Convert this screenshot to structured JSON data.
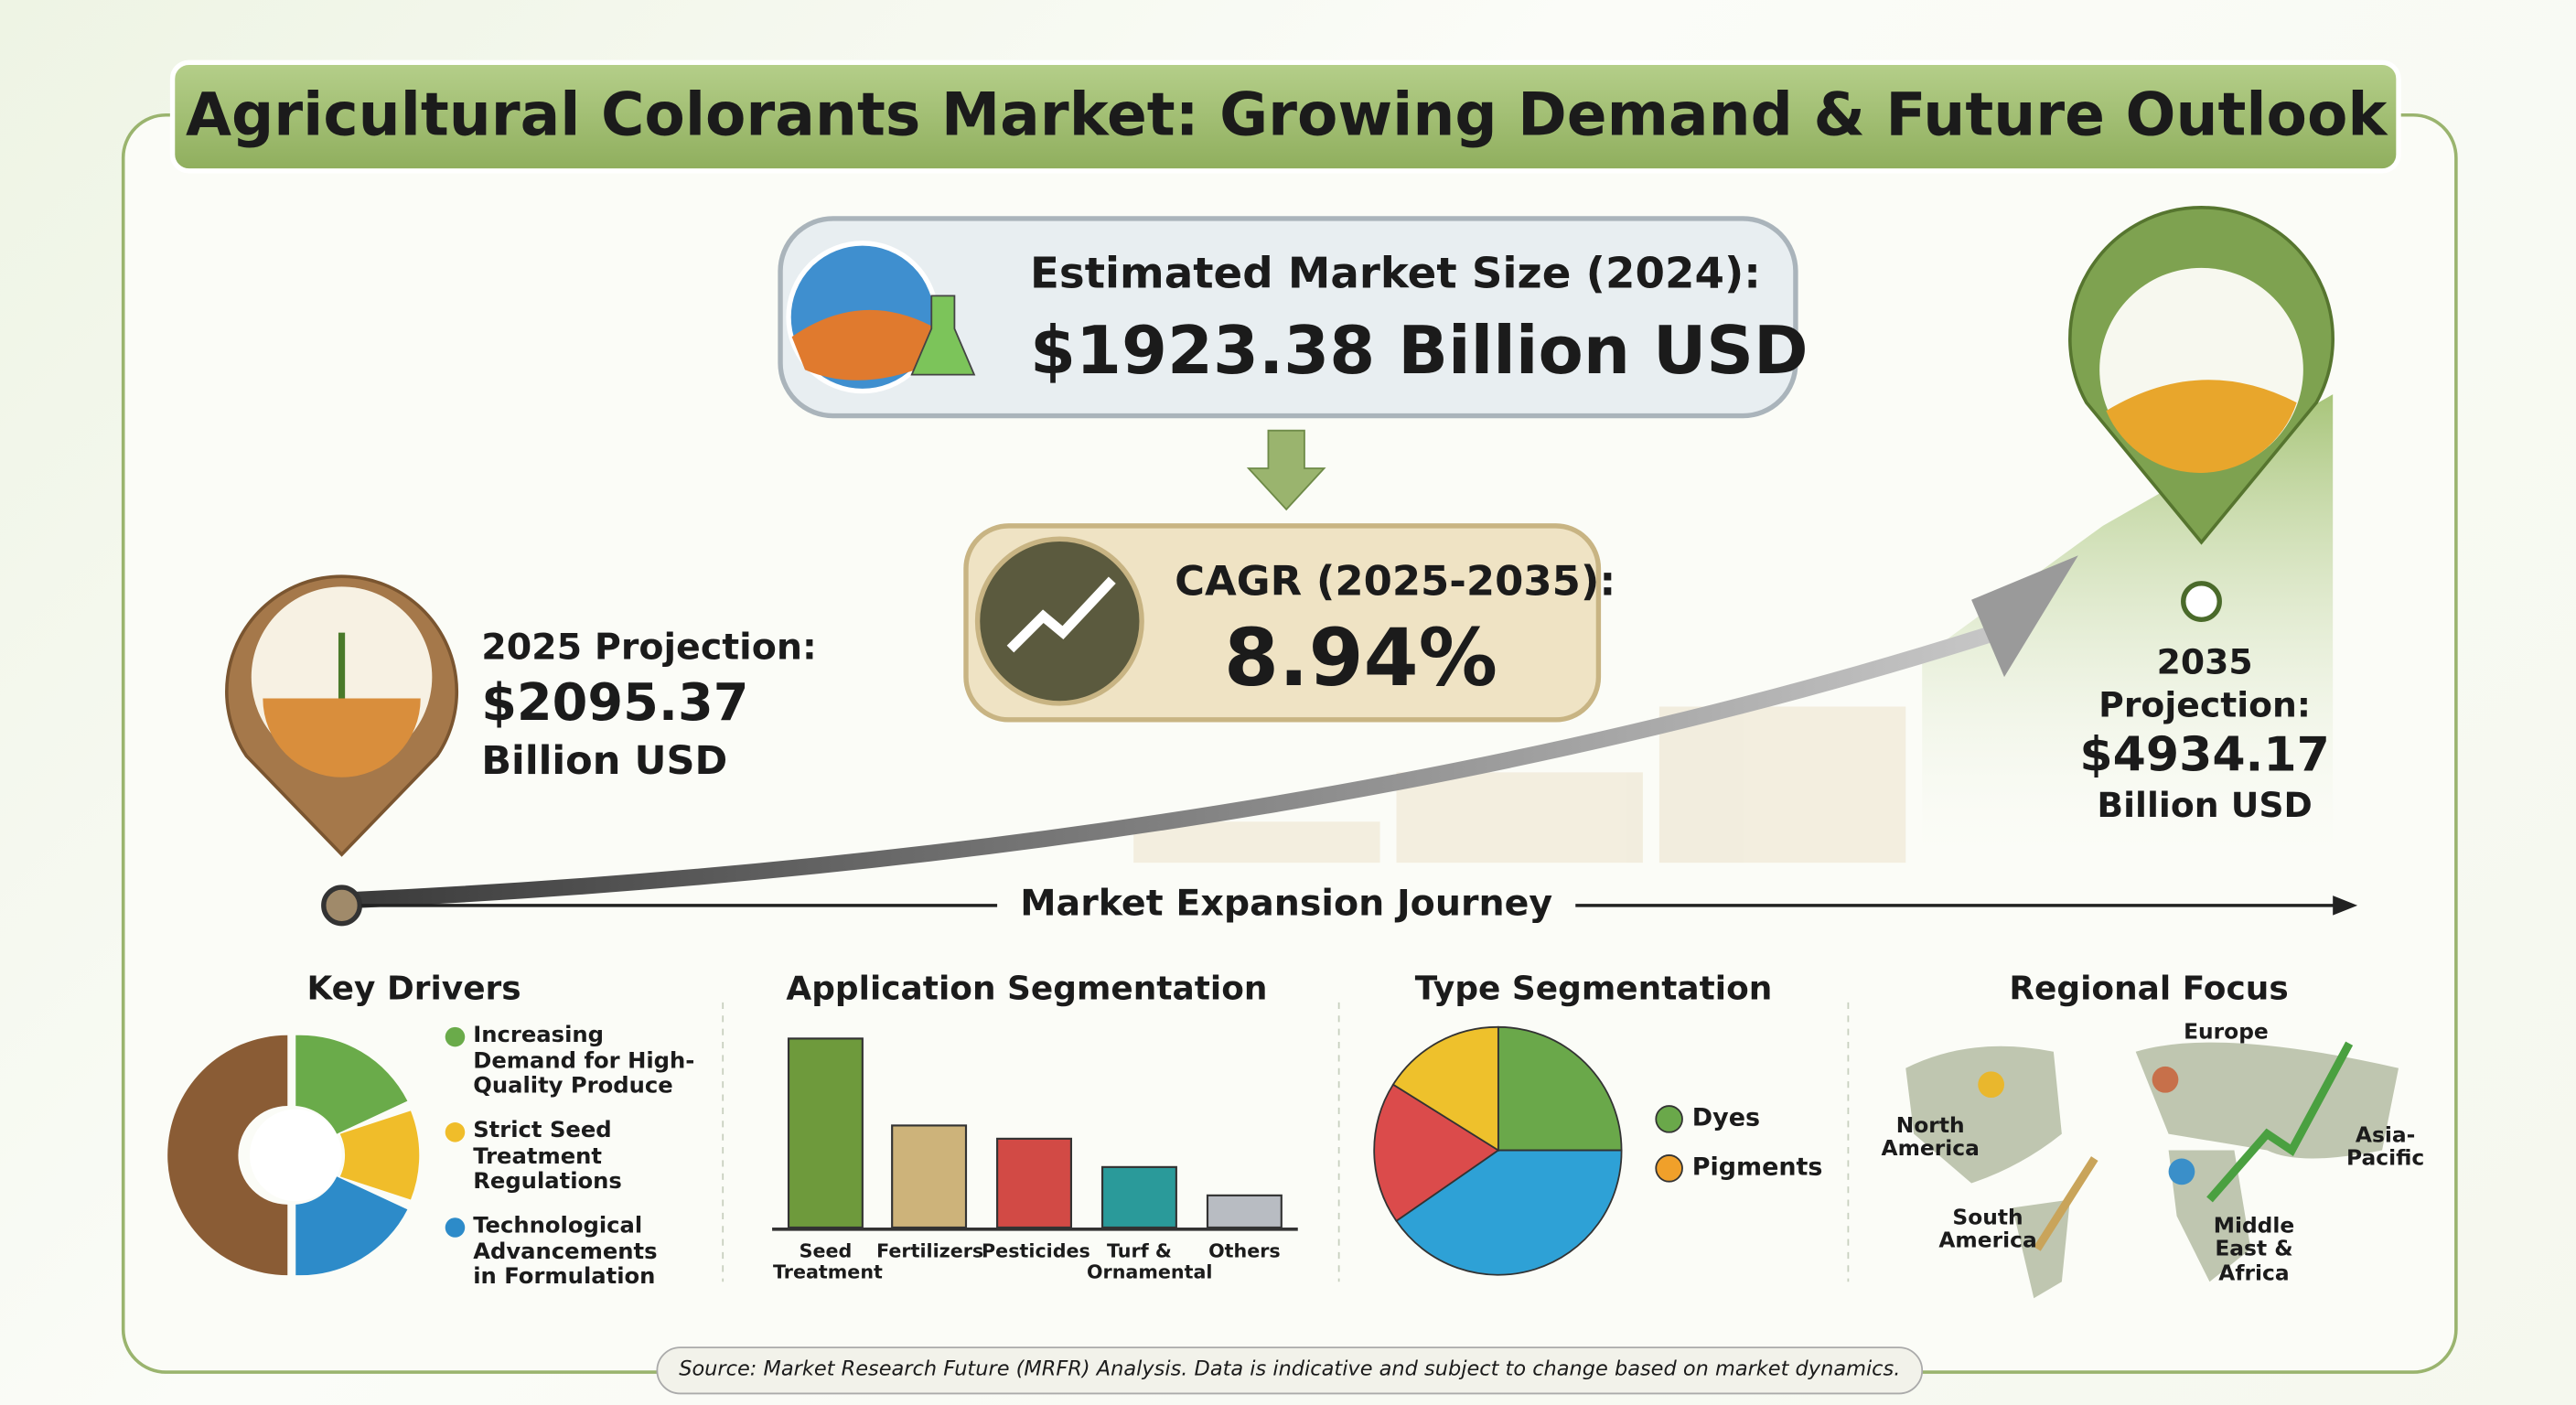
{
  "header": {
    "title": "Agricultural Colorants Market: Growing Demand & Future Outlook"
  },
  "market_size": {
    "label": "Estimated Market Size (2024):",
    "value": "$1923.38 Billion USD"
  },
  "cagr": {
    "label": "CAGR (2025-2035):",
    "value": "8.94%"
  },
  "projection_2025": {
    "label": "2025 Projection:",
    "value": "$2095.37",
    "unit": "Billion USD"
  },
  "projection_2035": {
    "label": "2035 Projection:",
    "value": "$4934.17",
    "unit": "Billion USD"
  },
  "journey": {
    "label": "Market Expansion Journey"
  },
  "key_drivers": {
    "title": "Key Drivers",
    "items": [
      "Increasing Demand for High-Quality Produce",
      "Strict Seed Treatment Regulations",
      "Technological Advancements in Formulation"
    ]
  },
  "application_segmentation": {
    "title": "Application Segmentation",
    "categories": [
      "Seed Treatment",
      "Fertilizers",
      "Pesticides",
      "Turf & Ornamental",
      "Others"
    ],
    "values": [
      100,
      54,
      47,
      32,
      17
    ],
    "colors": [
      "#6e9a3c",
      "#cdb37a",
      "#d24a45",
      "#2a9a9a",
      "#b8bcc2"
    ]
  },
  "type_segmentation": {
    "title": "Type Segmentation",
    "legend": [
      "Dyes",
      "Pigments"
    ]
  },
  "regional_focus": {
    "title": "Regional Focus",
    "regions": [
      "North America",
      "Europe",
      "Asia-Pacific",
      "South America",
      "Middle East & Africa"
    ]
  },
  "source": "Source: Market Research Future (MRFR) Analysis. Data is indicative and subject to change based on market dynamics."
}
